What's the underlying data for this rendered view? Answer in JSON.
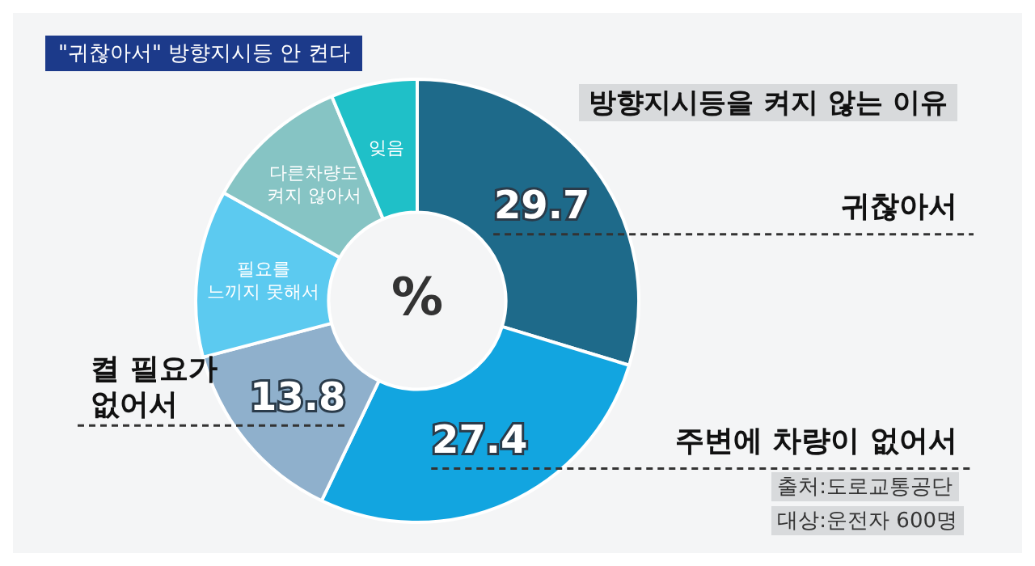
{
  "chart_data": {
    "type": "donut",
    "title": "\"귀찮아서\" 방향지시등 안 켠다",
    "subtitle": "방향지시등을 켜지 않는 이유",
    "categories": [
      "귀찮아서",
      "주변에 차량이 없어서",
      "켤 필요가 없어서",
      "필요를 느끼지 못해서",
      "다른차량도 켜지 않아서",
      "잊음"
    ],
    "values": [
      29.7,
      27.4,
      13.8,
      12.2,
      10.6,
      6.3
    ],
    "colors": [
      "#1e6a8a",
      "#12a5e0",
      "#8fb0cc",
      "#5ccaf0",
      "#86c4c4",
      "#1fc0c8"
    ],
    "value_labels": [
      "29.7",
      "27.4",
      "13.8",
      null,
      null,
      null
    ],
    "annotations": [
      "%",
      "출처:도로교통공단",
      "대상:운전자 600명"
    ],
    "legend": false
  }
}
